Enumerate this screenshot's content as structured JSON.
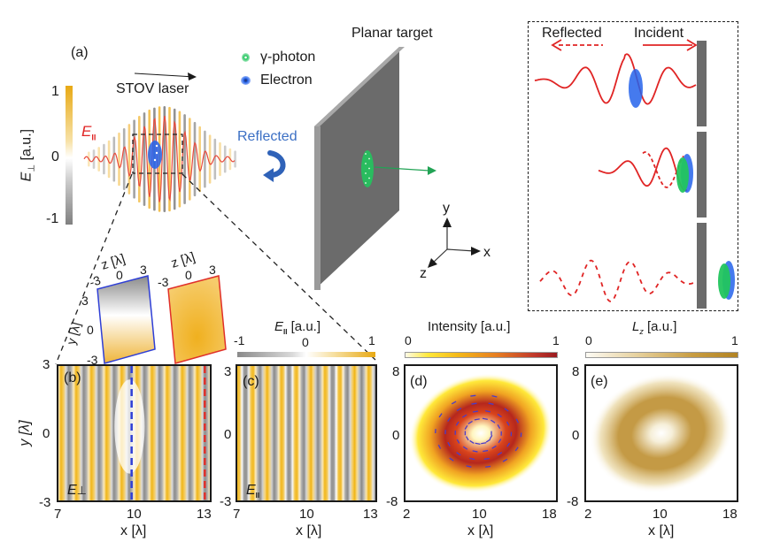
{
  "figure": {
    "panel_a": {
      "label": "(a)",
      "laser_label": "STOV laser",
      "field_label_parallel": "E",
      "field_label_parallel_sub": "II",
      "colorbar": {
        "label_main": "E",
        "label_sub": "⊥",
        "label_units": " [a.u.]",
        "ticks": [
          "1",
          "0",
          "-1"
        ],
        "colors": [
          "#e8a914",
          "#ffffff",
          "#808080"
        ]
      },
      "legend": [
        {
          "label": "γ-photon",
          "color": "#22c55e",
          "icon": "gamma-photon-dot-icon"
        },
        {
          "label": "Electron",
          "color": "#2563eb",
          "icon": "electron-dot-icon"
        }
      ],
      "reflected_label": "Reflected",
      "target_label": "Planar target",
      "axes": {
        "x": "x",
        "y": "y",
        "z": "z"
      }
    },
    "inset_schematic": {
      "reflected_label": "Reflected",
      "incident_label": "Incident",
      "wave_color": "#e02424"
    },
    "zoom_slices": {
      "z_label": "z [λ]",
      "y_label": "y [λ]",
      "z_ticks": [
        "-3",
        "0",
        "3"
      ],
      "y_ticks": [
        "3",
        "0",
        "-3"
      ],
      "blue_slice_border": "#2f3fd6",
      "red_slice_border": "#e0302a"
    },
    "panel_b": {
      "label": "(b)",
      "field": "E",
      "field_sub": "⊥",
      "xlabel": "x [λ]",
      "ylabel": "y [λ]",
      "xticks": [
        "7",
        "10",
        "13"
      ],
      "yticks": [
        "3",
        "0",
        "-3"
      ]
    },
    "panel_c": {
      "label": "(c)",
      "field": "E",
      "field_sub": "II",
      "xlabel": "x [λ]",
      "xticks": [
        "7",
        "10",
        "13"
      ],
      "yticks": [
        "3",
        "0",
        "-3"
      ],
      "colorbar": {
        "label": "E",
        "label_sub": "II",
        "label_units": " [a.u.]",
        "ticks": [
          "-1",
          "0",
          "1"
        ]
      }
    },
    "panel_d": {
      "label": "(d)",
      "xlabel": "x [λ]",
      "xticks": [
        "2",
        "10",
        "18"
      ],
      "yticks": [
        "8",
        "0",
        "-8"
      ],
      "colorbar": {
        "label": "Intensity [a.u.]",
        "ticks": [
          "0",
          "1"
        ]
      }
    },
    "panel_e": {
      "label": "(e)",
      "xlabel": "x [λ]",
      "xticks": [
        "2",
        "10",
        "18"
      ],
      "yticks": [
        "8",
        "0",
        "-8"
      ],
      "colorbar": {
        "label": "L",
        "label_sub": "z",
        "label_units": " [a.u.]",
        "ticks": [
          "0",
          "1"
        ]
      }
    }
  },
  "chart_data": [
    {
      "type": "heatmap",
      "title": "(b) E⊥",
      "xlabel": "x [λ]",
      "ylabel": "y [λ]",
      "xlim": [
        7,
        13
      ],
      "ylim": [
        -3,
        3
      ],
      "xticks": [
        7,
        10,
        13
      ],
      "yticks": [
        -3,
        0,
        3
      ],
      "colorbar": {
        "label": "E⊥ [a.u.]",
        "range": [
          -1,
          1
        ]
      },
      "annotations": [
        {
          "type": "vline",
          "x": 9.9,
          "color": "#2f3fd6",
          "style": "dashed"
        },
        {
          "type": "vline",
          "x": 12.8,
          "color": "#e0302a",
          "style": "dashed"
        }
      ]
    },
    {
      "type": "heatmap",
      "title": "(c) E∥",
      "xlabel": "x [λ]",
      "xlim": [
        7,
        13
      ],
      "ylim": [
        -3,
        3
      ],
      "xticks": [
        7,
        10,
        13
      ],
      "yticks": [
        -3,
        0,
        3
      ],
      "colorbar": {
        "label": "E∥ [a.u.]",
        "range": [
          -1,
          1
        ]
      }
    },
    {
      "type": "heatmap",
      "title": "(d) Intensity",
      "xlabel": "x [λ]",
      "xlim": [
        2,
        18
      ],
      "ylim": [
        -8,
        8
      ],
      "xticks": [
        2,
        10,
        18
      ],
      "yticks": [
        -8,
        0,
        8
      ],
      "colorbar": {
        "label": "Intensity [a.u.]",
        "range": [
          0,
          1
        ]
      },
      "ring_center": [
        10,
        0
      ],
      "ring_radius": 3.5
    },
    {
      "type": "heatmap",
      "title": "(e) Lz",
      "xlabel": "x [λ]",
      "xlim": [
        2,
        18
      ],
      "ylim": [
        -8,
        8
      ],
      "xticks": [
        2,
        10,
        18
      ],
      "yticks": [
        -8,
        0,
        8
      ],
      "colorbar": {
        "label": "Lz [a.u.]",
        "range": [
          0,
          1
        ]
      },
      "ring_center": [
        10,
        0
      ],
      "ring_radius": 3.5
    }
  ]
}
